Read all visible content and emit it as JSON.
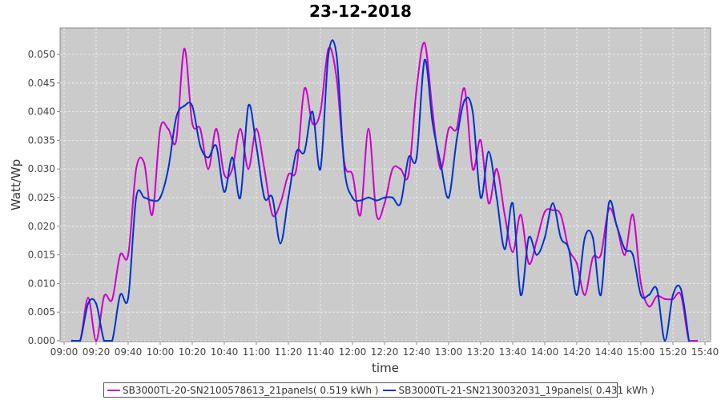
{
  "chart_data": {
    "type": "line",
    "title": "23-12-2018",
    "xlabel": "time",
    "ylabel": "Watt/Wp",
    "ylim": [
      0,
      0.0545
    ],
    "yticks": [
      "0.000",
      "0.005",
      "0.010",
      "0.015",
      "0.020",
      "0.025",
      "0.030",
      "0.035",
      "0.040",
      "0.045",
      "0.050"
    ],
    "xticks": [
      "09:00",
      "09:20",
      "09:40",
      "10:00",
      "10:20",
      "10:40",
      "11:00",
      "11:20",
      "11:40",
      "12:00",
      "12:20",
      "12:40",
      "13:00",
      "13:20",
      "13:40",
      "14:00",
      "14:20",
      "14:40",
      "15:00",
      "15:20",
      "15:40"
    ],
    "x_start": "09:05",
    "x_step_minutes": 5,
    "grid": true,
    "legend_position": "bottom",
    "series": [
      {
        "name": "SB3000TL-20-SN2100578613_21panels( 0.519 kWh )",
        "color": "#cc00cc",
        "values": [
          0,
          0,
          0.0075,
          0,
          0.0078,
          0.0072,
          0.015,
          0.015,
          0.03,
          0.031,
          0.022,
          0.037,
          0.037,
          0.035,
          0.051,
          0.038,
          0.037,
          0.03,
          0.037,
          0.029,
          0.03,
          0.037,
          0.03,
          0.037,
          0.03,
          0.022,
          0.024,
          0.029,
          0.03,
          0.044,
          0.038,
          0.04,
          0.051,
          0.046,
          0.031,
          0.029,
          0.022,
          0.037,
          0.022,
          0.024,
          0.03,
          0.03,
          0.029,
          0.044,
          0.052,
          0.04,
          0.03,
          0.037,
          0.037,
          0.044,
          0.03,
          0.035,
          0.024,
          0.03,
          0.022,
          0.0155,
          0.022,
          0.0135,
          0.0175,
          0.0225,
          0.0228,
          0.022,
          0.016,
          0.0135,
          0.008,
          0.0145,
          0.015,
          0.023,
          0.02,
          0.015,
          0.022,
          0.01,
          0.006,
          0.0078,
          0.0073,
          0.0073,
          0.008,
          0,
          0
        ]
      },
      {
        "name": "SB3000TL-21-SN2130032031_19panels( 0.431 kWh )",
        "color": "#0033cc",
        "values": [
          0,
          0,
          0.0065,
          0.0065,
          0,
          0,
          0.008,
          0.0075,
          0.025,
          0.025,
          0.0245,
          0.025,
          0.03,
          0.039,
          0.041,
          0.041,
          0.034,
          0.032,
          0.034,
          0.026,
          0.032,
          0.025,
          0.041,
          0.034,
          0.025,
          0.025,
          0.017,
          0.025,
          0.033,
          0.033,
          0.04,
          0.03,
          0.05,
          0.05,
          0.03,
          0.025,
          0.0245,
          0.025,
          0.0245,
          0.025,
          0.025,
          0.024,
          0.032,
          0.032,
          0.049,
          0.038,
          0.031,
          0.025,
          0.035,
          0.042,
          0.04,
          0.025,
          0.033,
          0.025,
          0.016,
          0.024,
          0.008,
          0.018,
          0.015,
          0.018,
          0.024,
          0.018,
          0.016,
          0.008,
          0.018,
          0.018,
          0.008,
          0.024,
          0.02,
          0.016,
          0.015,
          0.008,
          0.008,
          0.009,
          0,
          0.008,
          0.009,
          0
        ]
      }
    ]
  }
}
